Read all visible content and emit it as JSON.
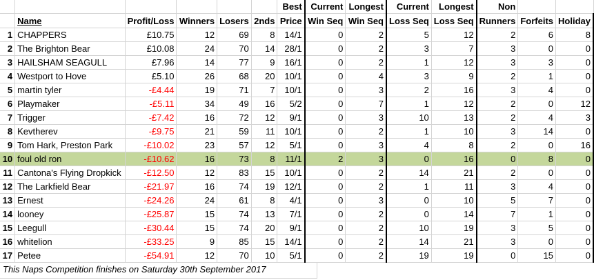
{
  "headers": {
    "row1": [
      "",
      "",
      "",
      "",
      "",
      "",
      "Best",
      "Current",
      "Longest",
      "Current",
      "Longest",
      "Non",
      "",
      ""
    ],
    "row2": [
      "",
      "Name",
      "Profit/Loss",
      "Winners",
      "Losers",
      "2nds",
      "Price",
      "Win Seq",
      "Win Seq",
      "Loss Seq",
      "Loss Seq",
      "Runners",
      "Forfeits",
      "Holiday"
    ]
  },
  "rows": [
    {
      "rank": "1",
      "name": "CHAPPERS",
      "pl": "£10.75",
      "neg": false,
      "winners": "12",
      "losers": "69",
      "seconds": "8",
      "best": "14/1",
      "cws": "0",
      "lws": "2",
      "cls": "5",
      "lls": "12",
      "nr": "2",
      "ff": "6",
      "hol": "8"
    },
    {
      "rank": "2",
      "name": "The Brighton Bear",
      "pl": "£10.08",
      "neg": false,
      "winners": "24",
      "losers": "70",
      "seconds": "14",
      "best": "28/1",
      "cws": "0",
      "lws": "2",
      "cls": "3",
      "lls": "7",
      "nr": "3",
      "ff": "0",
      "hol": "0"
    },
    {
      "rank": "3",
      "name": "HAILSHAM SEAGULL",
      "pl": "£7.96",
      "neg": false,
      "winners": "14",
      "losers": "77",
      "seconds": "9",
      "best": "16/1",
      "cws": "0",
      "lws": "2",
      "cls": "1",
      "lls": "12",
      "nr": "3",
      "ff": "3",
      "hol": "0"
    },
    {
      "rank": "4",
      "name": "Westport to Hove",
      "pl": "£5.10",
      "neg": false,
      "winners": "26",
      "losers": "68",
      "seconds": "20",
      "best": "10/1",
      "cws": "0",
      "lws": "4",
      "cls": "3",
      "lls": "9",
      "nr": "2",
      "ff": "1",
      "hol": "0"
    },
    {
      "rank": "5",
      "name": "martin tyler",
      "pl": "-£4.44",
      "neg": true,
      "winners": "19",
      "losers": "71",
      "seconds": "7",
      "best": "10/1",
      "cws": "0",
      "lws": "3",
      "cls": "2",
      "lls": "16",
      "nr": "3",
      "ff": "4",
      "hol": "0"
    },
    {
      "rank": "6",
      "name": "Playmaker",
      "pl": "-£5.11",
      "neg": true,
      "winners": "34",
      "losers": "49",
      "seconds": "16",
      "best": "5/2",
      "cws": "0",
      "lws": "7",
      "cls": "1",
      "lls": "12",
      "nr": "2",
      "ff": "0",
      "hol": "12"
    },
    {
      "rank": "7",
      "name": "Trigger",
      "pl": "-£7.42",
      "neg": true,
      "winners": "16",
      "losers": "72",
      "seconds": "12",
      "best": "9/1",
      "cws": "0",
      "lws": "3",
      "cls": "10",
      "lls": "13",
      "nr": "2",
      "ff": "4",
      "hol": "3"
    },
    {
      "rank": "8",
      "name": "Kevtherev",
      "pl": "-£9.75",
      "neg": true,
      "winners": "21",
      "losers": "59",
      "seconds": "11",
      "best": "10/1",
      "cws": "0",
      "lws": "2",
      "cls": "1",
      "lls": "10",
      "nr": "3",
      "ff": "14",
      "hol": "0"
    },
    {
      "rank": "9",
      "name": "Tom Hark, Preston Park",
      "pl": "-£10.02",
      "neg": true,
      "winners": "23",
      "losers": "57",
      "seconds": "12",
      "best": "5/1",
      "cws": "0",
      "lws": "3",
      "cls": "4",
      "lls": "8",
      "nr": "2",
      "ff": "0",
      "hol": "16"
    },
    {
      "rank": "10",
      "name": "foul old ron",
      "pl": "-£10.62",
      "neg": true,
      "winners": "16",
      "losers": "73",
      "seconds": "8",
      "best": "11/1",
      "cws": "2",
      "lws": "3",
      "cls": "0",
      "lls": "16",
      "nr": "0",
      "ff": "8",
      "hol": "0",
      "highlight": true
    },
    {
      "rank": "11",
      "name": "Cantona's Flying Dropkick",
      "pl": "-£12.50",
      "neg": true,
      "winners": "12",
      "losers": "83",
      "seconds": "15",
      "best": "10/1",
      "cws": "0",
      "lws": "2",
      "cls": "14",
      "lls": "21",
      "nr": "2",
      "ff": "0",
      "hol": "0"
    },
    {
      "rank": "12",
      "name": "The Larkfield Bear",
      "pl": "-£21.97",
      "neg": true,
      "winners": "16",
      "losers": "74",
      "seconds": "19",
      "best": "12/1",
      "cws": "0",
      "lws": "2",
      "cls": "1",
      "lls": "11",
      "nr": "3",
      "ff": "4",
      "hol": "0"
    },
    {
      "rank": "13",
      "name": "Ernest",
      "pl": "-£24.26",
      "neg": true,
      "winners": "24",
      "losers": "61",
      "seconds": "8",
      "best": "4/1",
      "cws": "0",
      "lws": "3",
      "cls": "0",
      "lls": "10",
      "nr": "5",
      "ff": "7",
      "hol": "0"
    },
    {
      "rank": "14",
      "name": "looney",
      "pl": "-£25.87",
      "neg": true,
      "winners": "15",
      "losers": "74",
      "seconds": "13",
      "best": "7/1",
      "cws": "0",
      "lws": "2",
      "cls": "0",
      "lls": "14",
      "nr": "7",
      "ff": "1",
      "hol": "0"
    },
    {
      "rank": "15",
      "name": "Leegull",
      "pl": "-£30.44",
      "neg": true,
      "winners": "15",
      "losers": "74",
      "seconds": "20",
      "best": "9/1",
      "cws": "0",
      "lws": "2",
      "cls": "10",
      "lls": "19",
      "nr": "3",
      "ff": "5",
      "hol": "0"
    },
    {
      "rank": "16",
      "name": "whitelion",
      "pl": "-£33.25",
      "neg": true,
      "winners": "9",
      "losers": "85",
      "seconds": "15",
      "best": "14/1",
      "cws": "0",
      "lws": "2",
      "cls": "14",
      "lls": "21",
      "nr": "3",
      "ff": "0",
      "hol": "0"
    },
    {
      "rank": "17",
      "name": "Petee",
      "pl": "-£54.91",
      "neg": true,
      "winners": "12",
      "losers": "70",
      "seconds": "10",
      "best": "5/1",
      "cws": "0",
      "lws": "2",
      "cls": "19",
      "lls": "19",
      "nr": "0",
      "ff": "15",
      "hol": "0"
    }
  ],
  "footer": "This Naps Competition finishes on Saturday 30th September 2017",
  "colors": {
    "negative": "#ff0000",
    "highlight_row": "#c4d79b",
    "grid": "#d4d4d4"
  }
}
